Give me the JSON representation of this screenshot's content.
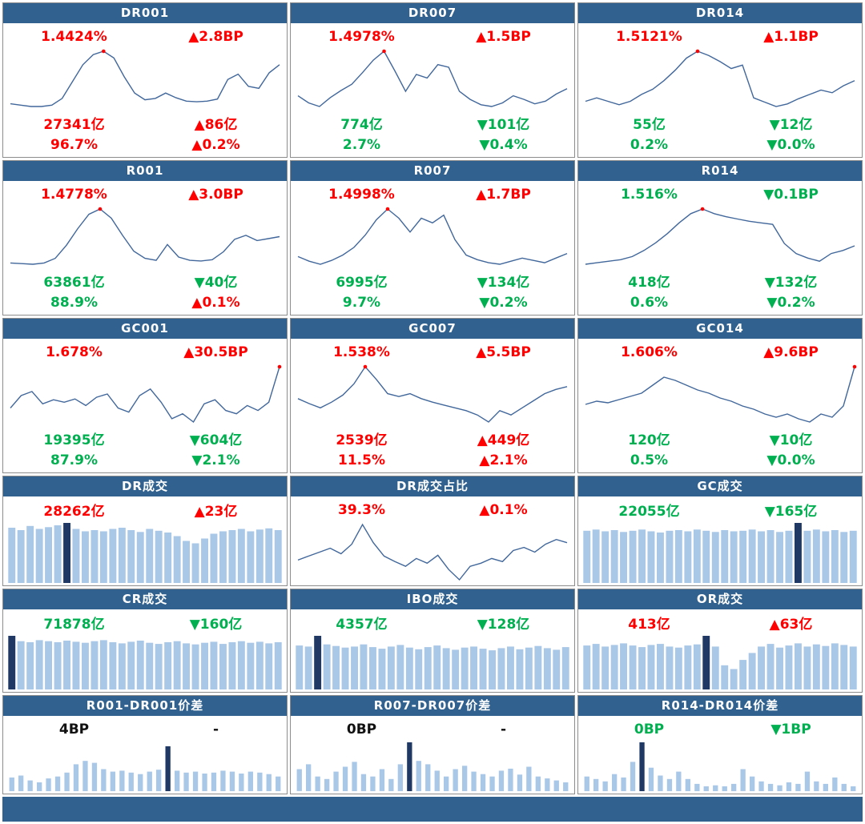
{
  "palette": {
    "header_bg": "#31628F",
    "red": "#FF0000",
    "green": "#00B050",
    "black": "#111111",
    "line": "#41679B",
    "marker": "#FF0000",
    "bar_light": "#A9C7E7",
    "bar_dark": "#1F3864"
  },
  "chart_data": [
    {
      "title": "DR001",
      "type": "line",
      "stats": [
        {
          "left": {
            "text": "1.4424%",
            "color": "red"
          },
          "right": {
            "text": "▲2.8BP",
            "color": "red"
          }
        },
        {
          "left": {
            "text": "27341亿",
            "color": "red"
          },
          "right": {
            "text": "▲86亿",
            "color": "red"
          }
        },
        {
          "left": {
            "text": "96.7%",
            "color": "red"
          },
          "right": {
            "text": "▲0.2%",
            "color": "red"
          }
        }
      ],
      "values": [
        0.22,
        0.2,
        0.18,
        0.18,
        0.2,
        0.3,
        0.55,
        0.8,
        0.95,
        1.0,
        0.9,
        0.62,
        0.38,
        0.28,
        0.3,
        0.38,
        0.31,
        0.26,
        0.25,
        0.26,
        0.29,
        0.58,
        0.66,
        0.48,
        0.45,
        0.68,
        0.8
      ],
      "marker": 9
    },
    {
      "title": "DR007",
      "type": "line",
      "stats": [
        {
          "left": {
            "text": "1.4978%",
            "color": "red"
          },
          "right": {
            "text": "▲1.5BP",
            "color": "red"
          }
        },
        {
          "left": {
            "text": "774亿",
            "color": "green"
          },
          "right": {
            "text": "▼101亿",
            "color": "green"
          }
        },
        {
          "left": {
            "text": "2.7%",
            "color": "green"
          },
          "right": {
            "text": "▼0.4%",
            "color": "green"
          }
        }
      ],
      "values": [
        0.5,
        0.42,
        0.38,
        0.48,
        0.56,
        0.63,
        0.76,
        0.9,
        1.0,
        0.78,
        0.55,
        0.74,
        0.7,
        0.85,
        0.82,
        0.55,
        0.46,
        0.4,
        0.38,
        0.42,
        0.5,
        0.46,
        0.41,
        0.44,
        0.52,
        0.58
      ],
      "marker": 8
    },
    {
      "title": "DR014",
      "type": "line",
      "stats": [
        {
          "left": {
            "text": "1.5121%",
            "color": "red"
          },
          "right": {
            "text": "▲1.1BP",
            "color": "red"
          }
        },
        {
          "left": {
            "text": "55亿",
            "color": "green"
          },
          "right": {
            "text": "▼12亿",
            "color": "green"
          }
        },
        {
          "left": {
            "text": "0.2%",
            "color": "green"
          },
          "right": {
            "text": "▼0.0%",
            "color": "green"
          }
        }
      ],
      "values": [
        0.42,
        0.46,
        0.42,
        0.38,
        0.42,
        0.5,
        0.56,
        0.66,
        0.78,
        0.92,
        1.0,
        0.95,
        0.88,
        0.8,
        0.84,
        0.46,
        0.41,
        0.36,
        0.39,
        0.45,
        0.5,
        0.55,
        0.52,
        0.6,
        0.66
      ],
      "marker": 10
    },
    {
      "title": "R001",
      "type": "line",
      "stats": [
        {
          "left": {
            "text": "1.4778%",
            "color": "red"
          },
          "right": {
            "text": "▲3.0BP",
            "color": "red"
          }
        },
        {
          "left": {
            "text": "63861亿",
            "color": "green"
          },
          "right": {
            "text": "▼40亿",
            "color": "green"
          }
        },
        {
          "left": {
            "text": "88.9%",
            "color": "green"
          },
          "right": {
            "text": "▲0.1%",
            "color": "red"
          }
        }
      ],
      "values": [
        0.18,
        0.17,
        0.16,
        0.18,
        0.25,
        0.45,
        0.7,
        0.92,
        1.0,
        0.86,
        0.6,
        0.36,
        0.25,
        0.22,
        0.46,
        0.27,
        0.22,
        0.21,
        0.23,
        0.35,
        0.54,
        0.6,
        0.52,
        0.55,
        0.58
      ],
      "marker": 8
    },
    {
      "title": "R007",
      "type": "line",
      "stats": [
        {
          "left": {
            "text": "1.4998%",
            "color": "red"
          },
          "right": {
            "text": "▲1.7BP",
            "color": "red"
          }
        },
        {
          "left": {
            "text": "6995亿",
            "color": "green"
          },
          "right": {
            "text": "▼134亿",
            "color": "green"
          }
        },
        {
          "left": {
            "text": "9.7%",
            "color": "green"
          },
          "right": {
            "text": "▼0.2%",
            "color": "green"
          }
        }
      ],
      "values": [
        0.38,
        0.32,
        0.28,
        0.33,
        0.4,
        0.5,
        0.66,
        0.86,
        1.0,
        0.88,
        0.7,
        0.88,
        0.82,
        0.92,
        0.6,
        0.4,
        0.34,
        0.3,
        0.28,
        0.32,
        0.36,
        0.33,
        0.3,
        0.36,
        0.42
      ],
      "marker": 8
    },
    {
      "title": "R014",
      "type": "line",
      "stats": [
        {
          "left": {
            "text": "1.516%",
            "color": "green"
          },
          "right": {
            "text": "▼0.1BP",
            "color": "green"
          }
        },
        {
          "left": {
            "text": "418亿",
            "color": "green"
          },
          "right": {
            "text": "▼132亿",
            "color": "green"
          }
        },
        {
          "left": {
            "text": "0.6%",
            "color": "green"
          },
          "right": {
            "text": "▼0.2%",
            "color": "green"
          }
        }
      ],
      "values": [
        0.28,
        0.3,
        0.32,
        0.34,
        0.38,
        0.46,
        0.56,
        0.68,
        0.82,
        0.94,
        1.0,
        0.94,
        0.9,
        0.87,
        0.84,
        0.82,
        0.8,
        0.55,
        0.42,
        0.36,
        0.32,
        0.42,
        0.46,
        0.52
      ],
      "marker": 10
    },
    {
      "title": "GC001",
      "type": "line",
      "stats": [
        {
          "left": {
            "text": "1.678%",
            "color": "red"
          },
          "right": {
            "text": "▲30.5BP",
            "color": "red"
          }
        },
        {
          "left": {
            "text": "19395亿",
            "color": "green"
          },
          "right": {
            "text": "▼604亿",
            "color": "green"
          }
        },
        {
          "left": {
            "text": "87.9%",
            "color": "green"
          },
          "right": {
            "text": "▼2.1%",
            "color": "green"
          }
        }
      ],
      "values": [
        0.45,
        0.6,
        0.65,
        0.5,
        0.55,
        0.52,
        0.56,
        0.48,
        0.58,
        0.62,
        0.45,
        0.4,
        0.6,
        0.68,
        0.52,
        0.32,
        0.38,
        0.28,
        0.5,
        0.55,
        0.42,
        0.38,
        0.48,
        0.42,
        0.52,
        0.95
      ],
      "marker": 25
    },
    {
      "title": "GC007",
      "type": "line",
      "stats": [
        {
          "left": {
            "text": "1.538%",
            "color": "red"
          },
          "right": {
            "text": "▲5.5BP",
            "color": "red"
          }
        },
        {
          "left": {
            "text": "2539亿",
            "color": "red"
          },
          "right": {
            "text": "▲449亿",
            "color": "red"
          }
        },
        {
          "left": {
            "text": "11.5%",
            "color": "red"
          },
          "right": {
            "text": "▲2.1%",
            "color": "red"
          }
        }
      ],
      "values": [
        0.55,
        0.48,
        0.42,
        0.5,
        0.6,
        0.76,
        1.0,
        0.82,
        0.62,
        0.58,
        0.62,
        0.55,
        0.5,
        0.46,
        0.42,
        0.38,
        0.32,
        0.22,
        0.38,
        0.32,
        0.42,
        0.52,
        0.62,
        0.68,
        0.72
      ],
      "marker": 6
    },
    {
      "title": "GC014",
      "type": "line",
      "stats": [
        {
          "left": {
            "text": "1.606%",
            "color": "red"
          },
          "right": {
            "text": "▲9.6BP",
            "color": "red"
          }
        },
        {
          "left": {
            "text": "120亿",
            "color": "green"
          },
          "right": {
            "text": "▼10亿",
            "color": "green"
          }
        },
        {
          "left": {
            "text": "0.5%",
            "color": "green"
          },
          "right": {
            "text": "▼0.0%",
            "color": "green"
          }
        }
      ],
      "values": [
        0.48,
        0.52,
        0.5,
        0.54,
        0.58,
        0.62,
        0.72,
        0.82,
        0.78,
        0.72,
        0.66,
        0.62,
        0.56,
        0.52,
        0.46,
        0.42,
        0.36,
        0.32,
        0.36,
        0.3,
        0.26,
        0.36,
        0.32,
        0.46,
        0.95
      ],
      "marker": 24
    },
    {
      "title": "DR成交",
      "type": "bar",
      "bar_ratio": 0.78,
      "stats": [
        {
          "left": {
            "text": "28262亿",
            "color": "red"
          },
          "right": {
            "text": "▲23亿",
            "color": "red"
          }
        }
      ],
      "values": [
        0.92,
        0.88,
        0.95,
        0.9,
        0.93,
        0.96,
        1.0,
        0.9,
        0.86,
        0.88,
        0.86,
        0.9,
        0.92,
        0.88,
        0.85,
        0.9,
        0.87,
        0.84,
        0.78,
        0.7,
        0.66,
        0.74,
        0.82,
        0.86,
        0.88,
        0.9,
        0.86,
        0.89,
        0.91,
        0.88
      ],
      "highlight": 6
    },
    {
      "title": "DR成交占比",
      "type": "line",
      "stats": [
        {
          "left": {
            "text": "39.3%",
            "color": "red"
          },
          "right": {
            "text": "▲0.1%",
            "color": "red"
          }
        }
      ],
      "values": [
        0.4,
        0.45,
        0.5,
        0.55,
        0.48,
        0.6,
        0.85,
        0.62,
        0.45,
        0.38,
        0.32,
        0.42,
        0.36,
        0.46,
        0.28,
        0.15,
        0.32,
        0.36,
        0.42,
        0.38,
        0.52,
        0.56,
        0.5,
        0.6,
        0.66,
        0.62
      ]
    },
    {
      "title": "GC成交",
      "type": "bar",
      "bar_ratio": 0.78,
      "stats": [
        {
          "left": {
            "text": "22055亿",
            "color": "green"
          },
          "right": {
            "text": "▼165亿",
            "color": "green"
          }
        }
      ],
      "values": [
        0.87,
        0.89,
        0.86,
        0.88,
        0.85,
        0.87,
        0.89,
        0.86,
        0.84,
        0.87,
        0.88,
        0.86,
        0.89,
        0.87,
        0.85,
        0.88,
        0.86,
        0.87,
        0.89,
        0.86,
        0.88,
        0.85,
        0.87,
        1.0,
        0.87,
        0.89,
        0.86,
        0.88,
        0.85,
        0.87
      ],
      "highlight": 23
    },
    {
      "title": "CR成交",
      "type": "bar",
      "bar_ratio": 0.78,
      "stats": [
        {
          "left": {
            "text": "71878亿",
            "color": "green"
          },
          "right": {
            "text": "▼160亿",
            "color": "green"
          }
        }
      ],
      "values": [
        1.0,
        0.9,
        0.88,
        0.92,
        0.9,
        0.88,
        0.91,
        0.89,
        0.87,
        0.9,
        0.92,
        0.88,
        0.86,
        0.89,
        0.91,
        0.87,
        0.85,
        0.88,
        0.9,
        0.86,
        0.84,
        0.87,
        0.89,
        0.85,
        0.88,
        0.9,
        0.87,
        0.89,
        0.86,
        0.88
      ],
      "highlight": 0
    },
    {
      "title": "IBO成交",
      "type": "bar",
      "bar_ratio": 0.78,
      "stats": [
        {
          "left": {
            "text": "4357亿",
            "color": "green"
          },
          "right": {
            "text": "▼128亿",
            "color": "green"
          }
        }
      ],
      "values": [
        0.82,
        0.8,
        1.0,
        0.84,
        0.81,
        0.78,
        0.8,
        0.84,
        0.79,
        0.76,
        0.8,
        0.83,
        0.78,
        0.75,
        0.79,
        0.82,
        0.77,
        0.74,
        0.78,
        0.8,
        0.76,
        0.73,
        0.77,
        0.8,
        0.75,
        0.78,
        0.81,
        0.77,
        0.74,
        0.79
      ],
      "highlight": 2
    },
    {
      "title": "OR成交",
      "type": "bar",
      "bar_ratio": 0.78,
      "stats": [
        {
          "left": {
            "text": "413亿",
            "color": "red"
          },
          "right": {
            "text": "▲63亿",
            "color": "red"
          }
        }
      ],
      "values": [
        0.82,
        0.85,
        0.8,
        0.83,
        0.86,
        0.82,
        0.79,
        0.83,
        0.85,
        0.8,
        0.78,
        0.82,
        0.84,
        1.0,
        0.8,
        0.45,
        0.38,
        0.55,
        0.68,
        0.8,
        0.85,
        0.78,
        0.82,
        0.86,
        0.8,
        0.84,
        0.81,
        0.86,
        0.83,
        0.8
      ],
      "highlight": 13
    },
    {
      "title": "R001-DR001价差",
      "type": "bar",
      "bar_ratio": 0.55,
      "stats": [
        {
          "left": {
            "text": "4BP",
            "color": "black"
          },
          "right": {
            "text": "-",
            "color": "black"
          }
        }
      ],
      "values": [
        0.28,
        0.32,
        0.22,
        0.18,
        0.26,
        0.3,
        0.38,
        0.55,
        0.62,
        0.58,
        0.45,
        0.4,
        0.42,
        0.38,
        0.35,
        0.4,
        0.44,
        0.92,
        0.42,
        0.38,
        0.4,
        0.36,
        0.38,
        0.42,
        0.4,
        0.36,
        0.4,
        0.38,
        0.35,
        0.3
      ],
      "highlight": 17
    },
    {
      "title": "R007-DR007价差",
      "type": "bar",
      "bar_ratio": 0.55,
      "stats": [
        {
          "left": {
            "text": "0BP",
            "color": "black"
          },
          "right": {
            "text": "-",
            "color": "black"
          }
        }
      ],
      "values": [
        0.45,
        0.55,
        0.3,
        0.25,
        0.4,
        0.5,
        0.6,
        0.35,
        0.3,
        0.45,
        0.25,
        0.55,
        1.0,
        0.62,
        0.55,
        0.42,
        0.3,
        0.45,
        0.52,
        0.4,
        0.35,
        0.3,
        0.42,
        0.46,
        0.34,
        0.5,
        0.3,
        0.26,
        0.22,
        0.18
      ],
      "highlight": 12
    },
    {
      "title": "R014-DR014价差",
      "type": "bar",
      "bar_ratio": 0.55,
      "stats": [
        {
          "left": {
            "text": "0BP",
            "color": "green"
          },
          "right": {
            "text": "▼1BP",
            "color": "green"
          }
        }
      ],
      "values": [
        0.3,
        0.25,
        0.2,
        0.35,
        0.28,
        0.6,
        1.0,
        0.48,
        0.32,
        0.25,
        0.4,
        0.25,
        0.15,
        0.1,
        0.12,
        0.1,
        0.15,
        0.45,
        0.3,
        0.2,
        0.15,
        0.12,
        0.18,
        0.15,
        0.4,
        0.2,
        0.15,
        0.28,
        0.15,
        0.1
      ],
      "highlight": 6
    }
  ]
}
